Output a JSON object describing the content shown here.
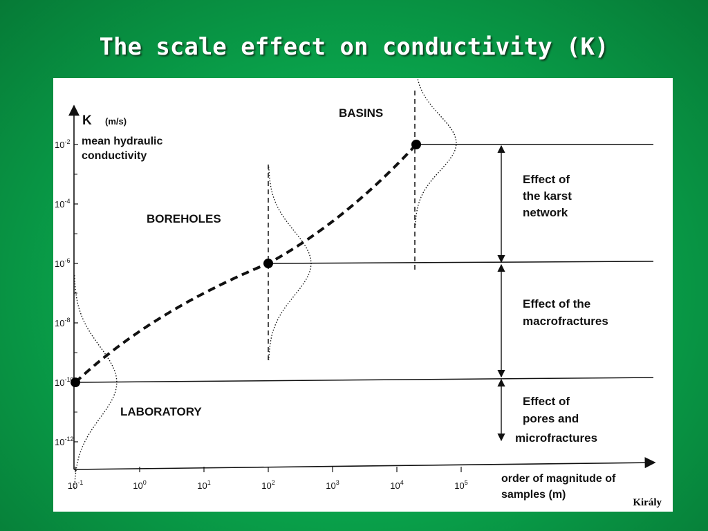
{
  "slide": {
    "title": "The scale effect on conductivity (K)",
    "credit": "Király",
    "background_color": "#0aa84e"
  },
  "chart_data": {
    "type": "line",
    "x_scale": "log",
    "y_scale": "log",
    "y_axis": {
      "symbol": "K",
      "unit": "(m/s)",
      "label_lines": [
        "mean hydraulic",
        "conductivity"
      ],
      "range": [
        1e-12,
        0.01
      ],
      "ticks": [
        {
          "base": "10",
          "exp": "-2",
          "value": 0.01
        },
        {
          "base": "10",
          "exp": "-4",
          "value": 0.0001
        },
        {
          "base": "10",
          "exp": "-6",
          "value": 1e-06
        },
        {
          "base": "10",
          "exp": "-8",
          "value": 1e-08
        },
        {
          "base": "10",
          "exp": "-10",
          "value": 1e-10
        },
        {
          "base": "10",
          "exp": "-12",
          "value": 1e-12
        }
      ]
    },
    "x_axis": {
      "label_lines": [
        "order of magnitude of",
        "samples (m)"
      ],
      "range": [
        0.1,
        100000
      ],
      "ticks": [
        {
          "base": "10",
          "exp": "-1",
          "value": 0.1
        },
        {
          "base": "10",
          "exp": "0",
          "value": 1
        },
        {
          "base": "10",
          "exp": "1",
          "value": 10
        },
        {
          "base": "10",
          "exp": "2",
          "value": 100
        },
        {
          "base": "10",
          "exp": "3",
          "value": 1000
        },
        {
          "base": "10",
          "exp": "4",
          "value": 10000
        },
        {
          "base": "10",
          "exp": "5",
          "value": 100000
        }
      ]
    },
    "series": [
      {
        "points": [
          {
            "scale": "LABORATORY",
            "x": 0.1,
            "y": 1e-10
          },
          {
            "scale": "BOREHOLES",
            "x": 100,
            "y": 1e-06
          },
          {
            "scale": "BASINS",
            "x": 20000,
            "y": 0.01
          }
        ]
      }
    ],
    "scale_labels": [
      "LABORATORY",
      "BOREHOLES",
      "BASINS"
    ],
    "effects": [
      {
        "lines": [
          "Effect of",
          "pores and",
          "microfractures"
        ],
        "y_from": 1e-10,
        "y_to": 1e-12
      },
      {
        "lines": [
          "Effect of the",
          "macrofractures"
        ],
        "y_from": 1e-06,
        "y_to": 1e-10
      },
      {
        "lines": [
          "Effect of",
          "the karst",
          "network"
        ],
        "y_from": 0.01,
        "y_to": 1e-06
      }
    ],
    "grid": false,
    "legend": "none"
  }
}
